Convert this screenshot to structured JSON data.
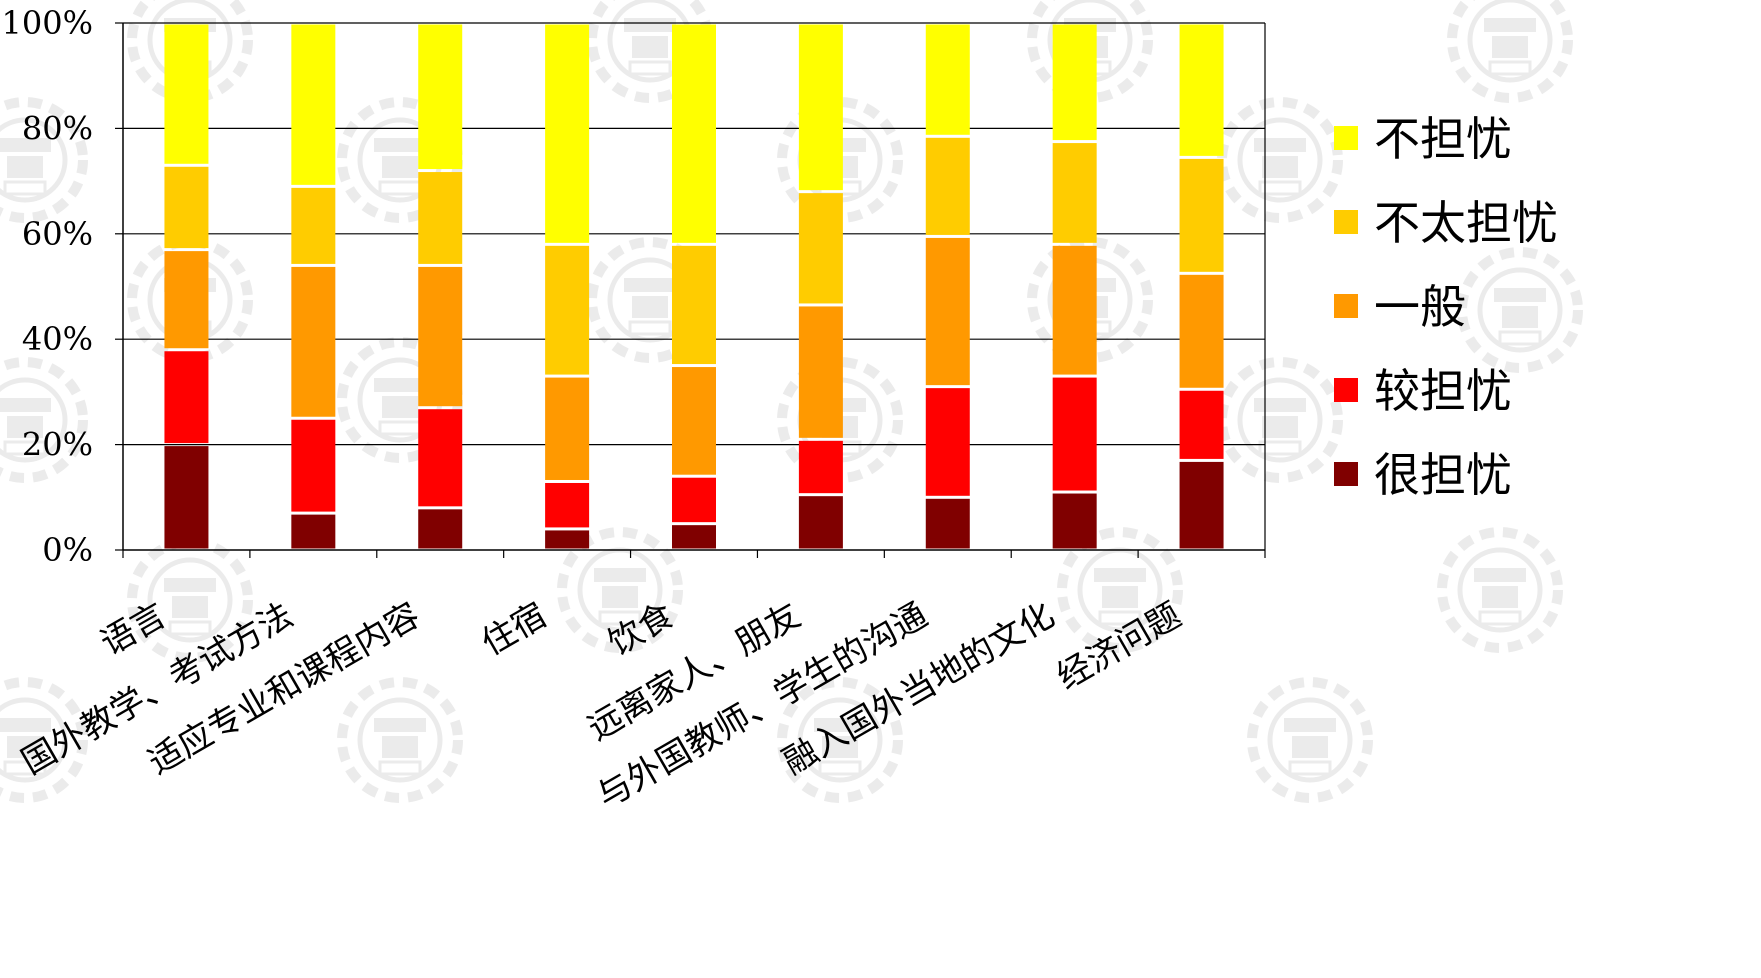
{
  "chart_data": {
    "type": "bar",
    "stacked": true,
    "percent": true,
    "categories": [
      "语言",
      "国外教学、考试方法",
      "适应专业和课程内容",
      "住宿",
      "饮食",
      "远离家人、朋友",
      "与外国教师、学生的沟通",
      "融入国外当地的文化",
      "经济问题"
    ],
    "series": [
      {
        "name": "很担忧",
        "color": "#800000",
        "values": [
          20,
          7,
          8,
          4,
          5,
          10.5,
          10,
          11,
          17
        ]
      },
      {
        "name": "较担忧",
        "color": "#ff0000",
        "values": [
          18,
          18,
          19,
          9,
          9,
          10.5,
          21,
          22,
          13.5
        ]
      },
      {
        "name": "一般",
        "color": "#ff9900",
        "values": [
          19,
          29,
          27,
          20,
          21,
          25.5,
          28.5,
          25,
          22
        ]
      },
      {
        "name": "不太担忧",
        "color": "#ffcc00",
        "values": [
          16,
          15,
          18,
          25,
          23,
          21.5,
          19,
          19.5,
          22
        ]
      },
      {
        "name": "不担忧",
        "color": "#ffff00",
        "values": [
          27,
          31,
          28,
          42,
          42,
          32,
          21.5,
          22.5,
          25.5
        ]
      }
    ],
    "y_ticks": [
      "0%",
      "20%",
      "40%",
      "60%",
      "80%",
      "100%"
    ],
    "ylim": [
      0,
      100
    ],
    "grid": true,
    "legend_position": "right"
  }
}
